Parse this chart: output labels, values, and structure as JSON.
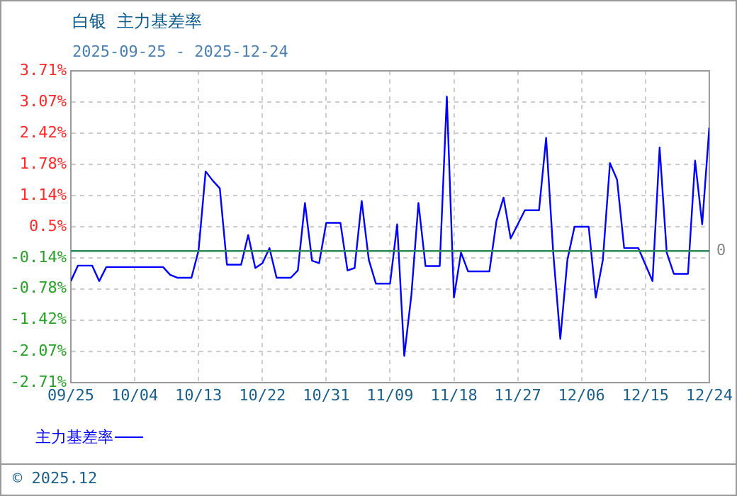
{
  "chart_data": {
    "type": "line",
    "title": "白银  主力基差率",
    "subtitle": "2025-09-25 - 2025-12-24",
    "x": [
      "2025-09-25",
      "2025-09-26",
      "2025-09-28",
      "2025-09-29",
      "2025-09-30",
      "2025-10-08",
      "2025-10-09",
      "2025-10-10",
      "2025-10-12",
      "2025-10-13",
      "2025-10-14",
      "2025-10-15",
      "2025-10-16",
      "2025-10-17",
      "2025-10-19",
      "2025-10-20",
      "2025-10-21",
      "2025-10-22",
      "2025-10-23",
      "2025-10-24",
      "2025-10-26",
      "2025-10-27",
      "2025-10-28",
      "2025-10-29",
      "2025-10-30",
      "2025-10-31",
      "2025-11-02",
      "2025-11-03",
      "2025-11-04",
      "2025-11-05",
      "2025-11-06",
      "2025-11-07",
      "2025-11-09",
      "2025-11-10",
      "2025-11-11",
      "2025-11-12",
      "2025-11-13",
      "2025-11-14",
      "2025-11-16",
      "2025-11-17",
      "2025-11-18",
      "2025-11-19",
      "2025-11-20",
      "2025-11-23",
      "2025-11-24",
      "2025-11-25",
      "2025-11-26",
      "2025-11-28",
      "2025-11-30",
      "2025-12-01",
      "2025-12-02",
      "2025-12-03",
      "2025-12-04",
      "2025-12-05",
      "2025-12-07",
      "2025-12-08",
      "2025-12-09",
      "2025-12-10",
      "2025-12-11",
      "2025-12-12",
      "2025-12-14",
      "2025-12-16",
      "2025-12-17",
      "2025-12-18",
      "2025-12-19",
      "2025-12-21",
      "2025-12-22",
      "2025-12-23",
      "2025-12-24"
    ],
    "series": [
      {
        "name": "主力基差率",
        "color": "#0000ff",
        "values": [
          -0.62,
          -0.3,
          -0.3,
          -0.62,
          -0.33,
          -0.33,
          -0.49,
          -0.55,
          -0.55,
          0.01,
          1.64,
          1.45,
          1.29,
          -0.28,
          -0.28,
          0.33,
          -0.35,
          -0.25,
          0.06,
          -0.55,
          -0.55,
          -0.4,
          0.99,
          -0.2,
          -0.25,
          0.58,
          0.58,
          -0.4,
          -0.35,
          1.03,
          -0.18,
          -0.67,
          -0.67,
          0.55,
          -2.16,
          -0.91,
          0.99,
          -0.31,
          -0.31,
          3.18,
          -0.96,
          -0.03,
          -0.42,
          -0.42,
          0.62,
          1.1,
          0.26,
          0.84,
          0.84,
          2.33,
          -0.03,
          -1.81,
          -0.18,
          0.5,
          0.5,
          -0.96,
          -0.18,
          1.81,
          1.47,
          0.06,
          0.06,
          -0.62,
          2.13,
          -0.03,
          -0.47,
          -0.47,
          1.86,
          0.55,
          2.54
        ]
      }
    ],
    "xlim": [
      "2025-09-25",
      "2025-12-24"
    ],
    "xticks": [
      {
        "value": "2025-09-25",
        "label": "09/25"
      },
      {
        "value": "2025-10-04",
        "label": "10/04"
      },
      {
        "value": "2025-10-13",
        "label": "10/13"
      },
      {
        "value": "2025-10-22",
        "label": "10/22"
      },
      {
        "value": "2025-10-31",
        "label": "10/31"
      },
      {
        "value": "2025-11-09",
        "label": "11/09"
      },
      {
        "value": "2025-11-18",
        "label": "11/18"
      },
      {
        "value": "2025-11-27",
        "label": "11/27"
      },
      {
        "value": "2025-12-06",
        "label": "12/06"
      },
      {
        "value": "2025-12-15",
        "label": "12/15"
      },
      {
        "value": "2025-12-24",
        "label": "12/24"
      }
    ],
    "ylim": [
      -2.71,
      3.71
    ],
    "yticks": [
      {
        "value": -2.71,
        "label": "-2.71%"
      },
      {
        "value": -2.07,
        "label": "-2.07%"
      },
      {
        "value": -1.42,
        "label": "-1.42%"
      },
      {
        "value": -0.78,
        "label": "-0.78%"
      },
      {
        "value": -0.14,
        "label": "-0.14%"
      },
      {
        "value": 0.5,
        "label": "0.5%"
      },
      {
        "value": 1.14,
        "label": "1.14%"
      },
      {
        "value": 1.78,
        "label": "1.78%"
      },
      {
        "value": 2.42,
        "label": "2.42%"
      },
      {
        "value": 3.07,
        "label": "3.07%"
      },
      {
        "value": 3.71,
        "label": "3.71%"
      }
    ],
    "ref_lines": [
      {
        "axis": "y",
        "value": 0,
        "label": "0",
        "color": "#2e8b57"
      }
    ],
    "annotations": [
      "© 2025.12"
    ],
    "grid": true,
    "legend": "bottom left",
    "marker": "none",
    "line_style": "solid"
  }
}
